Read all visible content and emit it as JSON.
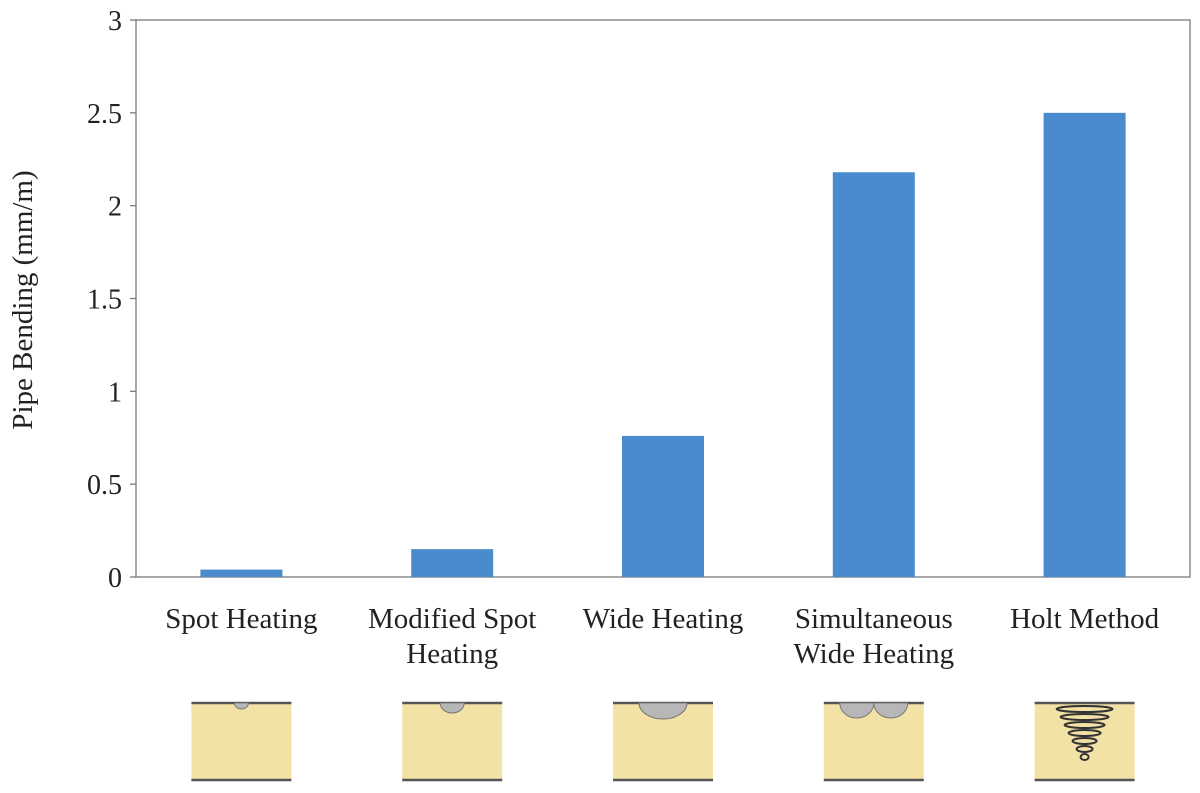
{
  "chart_data": {
    "type": "bar",
    "categories": [
      [
        "Spot Heating"
      ],
      [
        "Modified Spot",
        "Heating"
      ],
      [
        "Wide Heating"
      ],
      [
        "Simultaneous",
        "Wide Heating"
      ],
      [
        "Holt Method"
      ]
    ],
    "values": [
      0.04,
      0.15,
      0.76,
      2.18,
      2.5
    ],
    "title": "",
    "xlabel": "",
    "ylabel": "Pipe Bending (mm/m)",
    "ylim": [
      0,
      3
    ],
    "yticks": [
      "0",
      "0.5",
      "1",
      "1.5",
      "2",
      "2.5",
      "3"
    ],
    "grid": false,
    "legend": "none",
    "bar_color": "#4a8bcd"
  },
  "illustrations": {
    "icons": [
      "spot-heating-icon",
      "modified-spot-heating-icon",
      "wide-heating-icon",
      "simultaneous-wide-heating-icon",
      "holt-method-icon"
    ],
    "fill_color": "#f2e2a6",
    "heat_zone_color": "#b7b7b7"
  }
}
